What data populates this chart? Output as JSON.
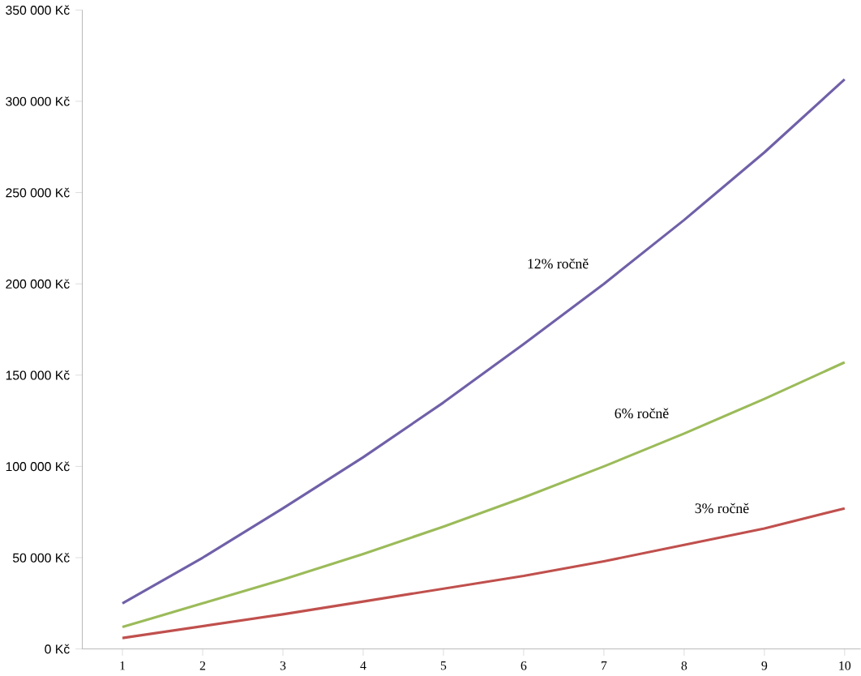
{
  "chart_data": {
    "type": "line",
    "x": [
      1,
      2,
      3,
      4,
      5,
      6,
      7,
      8,
      9,
      10
    ],
    "series": [
      {
        "name": "12% ročně",
        "color": "#7060a8",
        "values": [
          25000,
          50000,
          77000,
          105000,
          135000,
          167000,
          200000,
          235000,
          272000,
          312000
        ]
      },
      {
        "name": "6% ročně",
        "color": "#9bbb59",
        "values": [
          12000,
          25000,
          38000,
          52000,
          67000,
          83000,
          100000,
          118000,
          137000,
          157000
        ]
      },
      {
        "name": "3% ročně",
        "color": "#c0504d",
        "values": [
          6000,
          12500,
          19000,
          26000,
          33000,
          40000,
          48000,
          57000,
          66000,
          77000
        ]
      }
    ],
    "xlim": [
      0.5,
      10.2
    ],
    "xticks": [
      1,
      2,
      3,
      4,
      5,
      6,
      7,
      8,
      9,
      10
    ],
    "ylim": [
      0,
      350000
    ],
    "yticks": [
      {
        "value": 0,
        "label": "0 Kč"
      },
      {
        "value": 50000,
        "label": "50 000 Kč"
      },
      {
        "value": 100000,
        "label": "100 000 Kč"
      },
      {
        "value": 150000,
        "label": "150 000 Kč"
      },
      {
        "value": 200000,
        "label": "200 000 Kč"
      },
      {
        "value": 250000,
        "label": "250 000 Kč"
      },
      {
        "value": 300000,
        "label": "300 000 Kč"
      },
      {
        "value": 350000,
        "label": "350 000 Kč"
      }
    ],
    "grid": false,
    "legend": false,
    "marker": "none",
    "line_style": "solid"
  }
}
